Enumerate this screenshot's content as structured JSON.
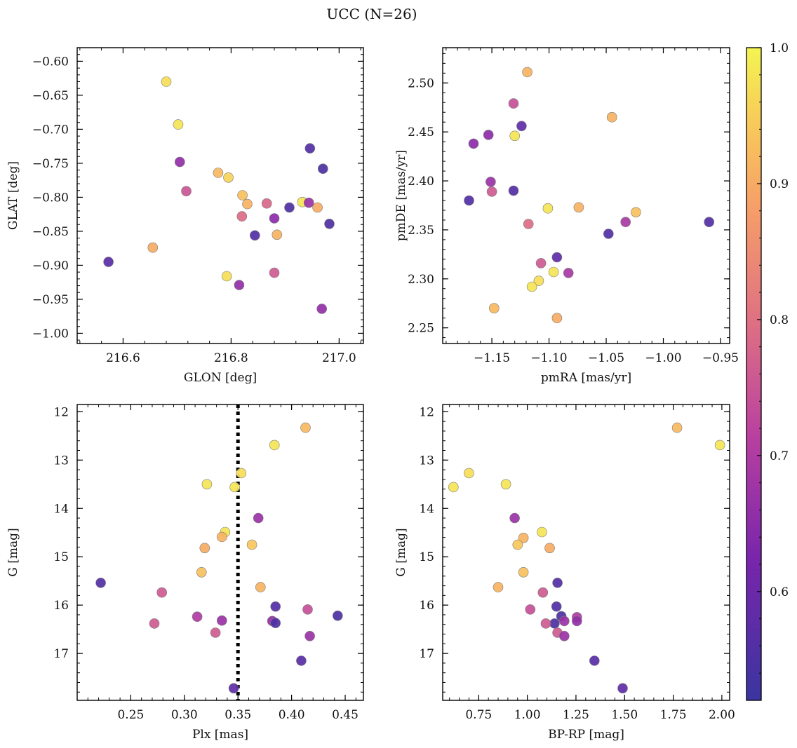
{
  "title": "UCC (N=26)",
  "colorbar": {
    "min": 0.52,
    "max": 1.0,
    "ticks": [
      0.6,
      0.7,
      0.8,
      0.9,
      1.0
    ],
    "tick_labels": [
      "0.6",
      "0.7",
      "0.8",
      "0.9",
      "1.0"
    ]
  },
  "chart_data": [
    {
      "type": "scatter",
      "xlabel": "GLON [deg]",
      "ylabel": "GLAT [deg]",
      "xlim": [
        216.515,
        217.045
      ],
      "ylim": [
        -1.015,
        -0.58
      ],
      "y_inverted": false,
      "xticks": [
        216.6,
        216.8,
        217.0
      ],
      "xtick_labels": [
        "216.6",
        "216.8",
        "217.0"
      ],
      "yticks": [
        -1.0,
        -0.95,
        -0.9,
        -0.85,
        -0.8,
        -0.75,
        -0.7,
        -0.65,
        -0.6
      ],
      "ytick_labels": [
        "−1.00",
        "−0.95",
        "−0.90",
        "−0.85",
        "−0.80",
        "−0.75",
        "−0.70",
        "−0.65",
        "−0.60"
      ],
      "points": [
        {
          "x": 216.68,
          "y": -0.63,
          "c": 0.97
        },
        {
          "x": 216.702,
          "y": -0.693,
          "c": 0.98
        },
        {
          "x": 216.705,
          "y": -0.748,
          "c": 0.66
        },
        {
          "x": 216.717,
          "y": -0.791,
          "c": 0.75
        },
        {
          "x": 216.776,
          "y": -0.764,
          "c": 0.92
        },
        {
          "x": 216.795,
          "y": -0.771,
          "c": 0.96
        },
        {
          "x": 216.821,
          "y": -0.797,
          "c": 0.93
        },
        {
          "x": 216.83,
          "y": -0.81,
          "c": 0.91
        },
        {
          "x": 216.82,
          "y": -0.828,
          "c": 0.79
        },
        {
          "x": 216.866,
          "y": -0.809,
          "c": 0.78
        },
        {
          "x": 216.88,
          "y": -0.831,
          "c": 0.65
        },
        {
          "x": 216.908,
          "y": -0.815,
          "c": 0.55
        },
        {
          "x": 216.932,
          "y": -0.807,
          "c": 0.98
        },
        {
          "x": 216.944,
          "y": -0.808,
          "c": 0.67
        },
        {
          "x": 216.96,
          "y": -0.815,
          "c": 0.9
        },
        {
          "x": 216.946,
          "y": -0.728,
          "c": 0.56
        },
        {
          "x": 216.97,
          "y": -0.758,
          "c": 0.55
        },
        {
          "x": 216.982,
          "y": -0.839,
          "c": 0.55
        },
        {
          "x": 216.844,
          "y": -0.856,
          "c": 0.56
        },
        {
          "x": 216.885,
          "y": -0.855,
          "c": 0.91
        },
        {
          "x": 216.655,
          "y": -0.874,
          "c": 0.9
        },
        {
          "x": 216.573,
          "y": -0.895,
          "c": 0.57
        },
        {
          "x": 216.792,
          "y": -0.916,
          "c": 0.97
        },
        {
          "x": 216.88,
          "y": -0.911,
          "c": 0.76
        },
        {
          "x": 216.815,
          "y": -0.929,
          "c": 0.66
        },
        {
          "x": 216.968,
          "y": -0.964,
          "c": 0.66
        }
      ]
    },
    {
      "type": "scatter",
      "xlabel": "pmRA [mas/yr]",
      "ylabel": "pmDE [mas/yr]",
      "xlim": [
        -1.193,
        -0.942
      ],
      "ylim": [
        2.234,
        2.536
      ],
      "y_inverted": false,
      "xticks": [
        -1.15,
        -1.1,
        -1.05,
        -1.0,
        -0.95
      ],
      "xtick_labels": [
        "−1.15",
        "−1.10",
        "−1.05",
        "−1.00",
        "−0.95"
      ],
      "yticks": [
        2.25,
        2.3,
        2.35,
        2.4,
        2.45,
        2.5
      ],
      "ytick_labels": [
        "2.25",
        "2.30",
        "2.35",
        "2.40",
        "2.45",
        "2.50"
      ],
      "points": [
        {
          "x": -1.119,
          "y": 2.511,
          "c": 0.91
        },
        {
          "x": -1.131,
          "y": 2.479,
          "c": 0.74
        },
        {
          "x": -1.045,
          "y": 2.465,
          "c": 0.91
        },
        {
          "x": -1.124,
          "y": 2.456,
          "c": 0.58
        },
        {
          "x": -1.153,
          "y": 2.447,
          "c": 0.65
        },
        {
          "x": -1.13,
          "y": 2.446,
          "c": 0.98
        },
        {
          "x": -1.166,
          "y": 2.438,
          "c": 0.65
        },
        {
          "x": -1.151,
          "y": 2.399,
          "c": 0.67
        },
        {
          "x": -1.15,
          "y": 2.389,
          "c": 0.76
        },
        {
          "x": -1.131,
          "y": 2.39,
          "c": 0.56
        },
        {
          "x": -1.17,
          "y": 2.38,
          "c": 0.56
        },
        {
          "x": -1.101,
          "y": 2.372,
          "c": 0.98
        },
        {
          "x": -1.074,
          "y": 2.373,
          "c": 0.91
        },
        {
          "x": -1.024,
          "y": 2.368,
          "c": 0.93
        },
        {
          "x": -1.033,
          "y": 2.358,
          "c": 0.69
        },
        {
          "x": -0.96,
          "y": 2.358,
          "c": 0.56
        },
        {
          "x": -1.118,
          "y": 2.356,
          "c": 0.79
        },
        {
          "x": -1.048,
          "y": 2.346,
          "c": 0.56
        },
        {
          "x": -1.093,
          "y": 2.322,
          "c": 0.58
        },
        {
          "x": -1.107,
          "y": 2.316,
          "c": 0.76
        },
        {
          "x": -1.083,
          "y": 2.306,
          "c": 0.69
        },
        {
          "x": -1.096,
          "y": 2.307,
          "c": 0.98
        },
        {
          "x": -1.109,
          "y": 2.298,
          "c": 0.97
        },
        {
          "x": -1.115,
          "y": 2.292,
          "c": 0.98
        },
        {
          "x": -1.148,
          "y": 2.27,
          "c": 0.92
        },
        {
          "x": -1.093,
          "y": 2.26,
          "c": 0.9
        }
      ]
    },
    {
      "type": "scatter",
      "xlabel": "Plx [mas]",
      "ylabel": "G [mag]",
      "xlim": [
        0.2,
        0.467
      ],
      "ylim": [
        17.97,
        11.85
      ],
      "y_inverted": true,
      "xticks": [
        0.25,
        0.3,
        0.35,
        0.4,
        0.45
      ],
      "xtick_labels": [
        "0.25",
        "0.30",
        "0.35",
        "0.40",
        "0.45"
      ],
      "yticks": [
        12,
        13,
        14,
        15,
        16,
        17
      ],
      "ytick_labels": [
        "12",
        "13",
        "14",
        "15",
        "16",
        "17"
      ],
      "vline": {
        "x": 0.35
      },
      "points": [
        {
          "x": 0.413,
          "y": 12.33,
          "c": 0.92
        },
        {
          "x": 0.384,
          "y": 12.69,
          "c": 0.98
        },
        {
          "x": 0.353,
          "y": 13.27,
          "c": 0.97
        },
        {
          "x": 0.321,
          "y": 13.5,
          "c": 0.98
        },
        {
          "x": 0.347,
          "y": 13.56,
          "c": 0.98
        },
        {
          "x": 0.369,
          "y": 14.2,
          "c": 0.67
        },
        {
          "x": 0.338,
          "y": 14.49,
          "c": 0.98
        },
        {
          "x": 0.335,
          "y": 14.59,
          "c": 0.91
        },
        {
          "x": 0.363,
          "y": 14.75,
          "c": 0.94
        },
        {
          "x": 0.319,
          "y": 14.82,
          "c": 0.9
        },
        {
          "x": 0.316,
          "y": 15.32,
          "c": 0.93
        },
        {
          "x": 0.371,
          "y": 15.63,
          "c": 0.91
        },
        {
          "x": 0.222,
          "y": 15.54,
          "c": 0.56
        },
        {
          "x": 0.279,
          "y": 15.74,
          "c": 0.76
        },
        {
          "x": 0.385,
          "y": 16.03,
          "c": 0.56
        },
        {
          "x": 0.415,
          "y": 16.09,
          "c": 0.74
        },
        {
          "x": 0.443,
          "y": 16.22,
          "c": 0.55
        },
        {
          "x": 0.312,
          "y": 16.24,
          "c": 0.7
        },
        {
          "x": 0.335,
          "y": 16.32,
          "c": 0.67
        },
        {
          "x": 0.382,
          "y": 16.33,
          "c": 0.66
        },
        {
          "x": 0.385,
          "y": 16.37,
          "c": 0.55
        },
        {
          "x": 0.272,
          "y": 16.38,
          "c": 0.76
        },
        {
          "x": 0.329,
          "y": 16.57,
          "c": 0.76
        },
        {
          "x": 0.417,
          "y": 16.64,
          "c": 0.67
        },
        {
          "x": 0.409,
          "y": 17.15,
          "c": 0.57
        },
        {
          "x": 0.346,
          "y": 17.72,
          "c": 0.58
        }
      ]
    },
    {
      "type": "scatter",
      "xlabel": "BP-RP [mag]",
      "ylabel": "G [mag]",
      "xlim": [
        0.565,
        2.04
      ],
      "ylim": [
        17.97,
        11.85
      ],
      "y_inverted": true,
      "xticks": [
        0.75,
        1.0,
        1.25,
        1.5,
        1.75,
        2.0
      ],
      "xtick_labels": [
        "0.75",
        "1.00",
        "1.25",
        "1.50",
        "1.75",
        "2.00"
      ],
      "yticks": [
        12,
        13,
        14,
        15,
        16,
        17
      ],
      "ytick_labels": [
        "12",
        "13",
        "14",
        "15",
        "16",
        "17"
      ],
      "points": [
        {
          "x": 1.77,
          "y": 12.33,
          "c": 0.92
        },
        {
          "x": 1.99,
          "y": 12.69,
          "c": 0.98
        },
        {
          "x": 0.7,
          "y": 13.27,
          "c": 0.97
        },
        {
          "x": 0.89,
          "y": 13.5,
          "c": 0.98
        },
        {
          "x": 0.62,
          "y": 13.56,
          "c": 0.98
        },
        {
          "x": 0.935,
          "y": 14.2,
          "c": 0.67
        },
        {
          "x": 1.075,
          "y": 14.49,
          "c": 0.98
        },
        {
          "x": 0.98,
          "y": 14.61,
          "c": 0.91
        },
        {
          "x": 0.95,
          "y": 14.75,
          "c": 0.94
        },
        {
          "x": 1.115,
          "y": 14.82,
          "c": 0.9
        },
        {
          "x": 0.98,
          "y": 15.32,
          "c": 0.93
        },
        {
          "x": 0.85,
          "y": 15.63,
          "c": 0.91
        },
        {
          "x": 1.155,
          "y": 15.54,
          "c": 0.56
        },
        {
          "x": 1.08,
          "y": 15.74,
          "c": 0.76
        },
        {
          "x": 1.15,
          "y": 16.03,
          "c": 0.56
        },
        {
          "x": 1.015,
          "y": 16.09,
          "c": 0.74
        },
        {
          "x": 1.175,
          "y": 16.23,
          "c": 0.55
        },
        {
          "x": 1.255,
          "y": 16.25,
          "c": 0.7
        },
        {
          "x": 1.19,
          "y": 16.33,
          "c": 0.67
        },
        {
          "x": 1.255,
          "y": 16.33,
          "c": 0.66
        },
        {
          "x": 1.14,
          "y": 16.38,
          "c": 0.55
        },
        {
          "x": 1.095,
          "y": 16.38,
          "c": 0.76
        },
        {
          "x": 1.155,
          "y": 16.57,
          "c": 0.76
        },
        {
          "x": 1.19,
          "y": 16.64,
          "c": 0.67
        },
        {
          "x": 1.345,
          "y": 17.15,
          "c": 0.57
        },
        {
          "x": 1.49,
          "y": 17.72,
          "c": 0.58
        }
      ]
    }
  ]
}
